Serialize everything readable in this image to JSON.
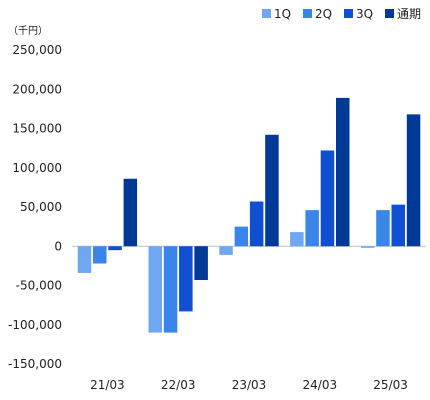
{
  "chart_data": {
    "type": "bar",
    "unit": "（千円）",
    "categories": [
      "21/03",
      "22/03",
      "23/03",
      "24/03",
      "25/03"
    ],
    "series": [
      {
        "name": "1Q",
        "color": "#6fa8f0",
        "values": [
          -34000,
          -110000,
          -11000,
          18000,
          -2000
        ]
      },
      {
        "name": "2Q",
        "color": "#3a86e8",
        "values": [
          -22000,
          -110000,
          25000,
          46000,
          46000
        ]
      },
      {
        "name": "3Q",
        "color": "#0f4fd0",
        "values": [
          -5000,
          -83000,
          57000,
          122000,
          53000
        ]
      },
      {
        "name": "通期",
        "color": "#003a96",
        "values": [
          86000,
          -43000,
          142000,
          189000,
          168000
        ]
      }
    ],
    "ylim": [
      -150000,
      250000
    ],
    "yticks": [
      -150000,
      -100000,
      -50000,
      0,
      50000,
      100000,
      150000,
      200000,
      250000
    ],
    "ytick_labels": [
      "-150,000",
      "-100,000",
      "-50,000",
      "0",
      "50,000",
      "100,000",
      "150,000",
      "200,000",
      "250,000"
    ],
    "grid": false,
    "legend": "top-right"
  }
}
